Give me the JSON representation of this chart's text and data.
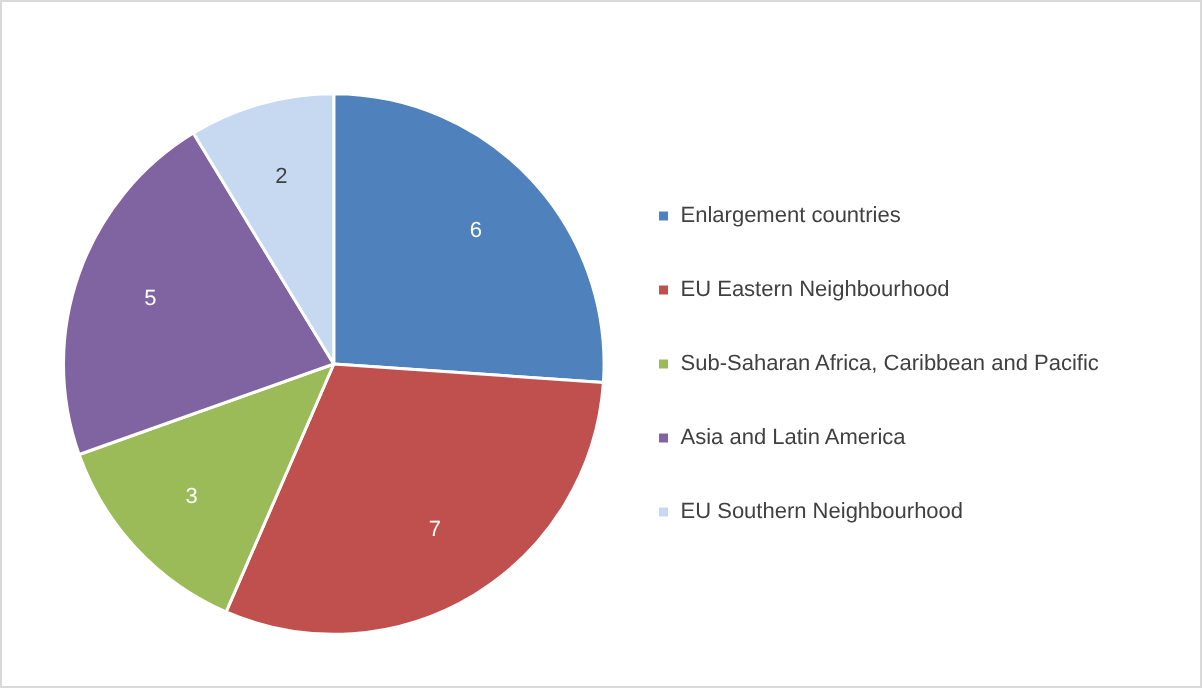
{
  "chart_data": {
    "type": "pie",
    "categories": [
      "Enlargement countries",
      "EU Eastern Neighbourhood",
      "Sub-Saharan Africa, Caribbean and Pacific",
      "Asia and Latin America",
      "EU Southern Neighbourhood"
    ],
    "values": [
      6,
      7,
      3,
      5,
      2
    ],
    "colors": [
      "#4f81bd",
      "#c0504d",
      "#9bbb59",
      "#8064a2",
      "#c6d9f1"
    ],
    "data_labels": true,
    "legend": "right"
  }
}
